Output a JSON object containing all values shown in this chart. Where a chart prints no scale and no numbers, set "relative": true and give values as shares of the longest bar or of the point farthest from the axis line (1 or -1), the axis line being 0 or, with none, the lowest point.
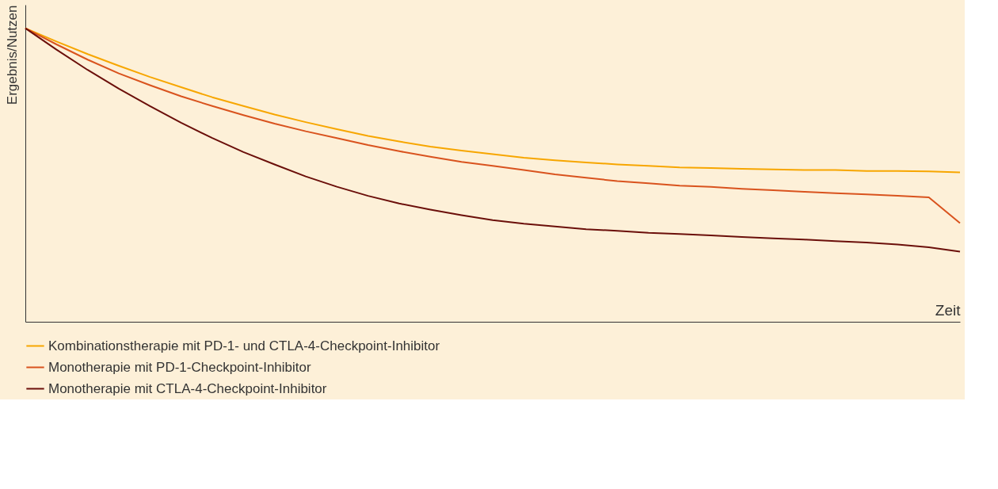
{
  "chart_data": {
    "type": "line",
    "relative": true,
    "xlabel": "Zeit",
    "ylabel": "Ergebnis/Nutzen",
    "legend": "bottom",
    "grid": false,
    "marker": "none",
    "line_style": "solid",
    "categories": [
      null,
      null,
      null,
      null,
      null,
      null,
      null,
      null,
      null,
      null,
      null,
      null,
      null,
      null,
      null,
      null,
      null,
      null,
      null,
      null,
      null,
      null,
      null,
      null,
      null,
      null,
      null,
      null,
      null,
      null,
      null
    ],
    "series": [
      {
        "name": "Kombinationstherapie mit PD-1- und CTLA-4-Checkpoint-Inhibitor",
        "color": "#f7a600",
        "values": [
          1.0,
          0.955,
          0.912,
          0.872,
          0.834,
          0.799,
          0.765,
          0.735,
          0.706,
          0.68,
          0.656,
          0.633,
          0.614,
          0.597,
          0.583,
          0.571,
          0.559,
          0.55,
          0.543,
          0.536,
          0.531,
          0.526,
          0.524,
          0.521,
          0.519,
          0.517,
          0.517,
          0.514,
          0.514,
          0.512,
          0.509
        ]
      },
      {
        "name": "Monotherapie mit PD-1-Checkpoint-Inhibitor",
        "color": "#d9531e",
        "values": [
          1.0,
          0.945,
          0.893,
          0.846,
          0.806,
          0.768,
          0.735,
          0.704,
          0.675,
          0.649,
          0.626,
          0.602,
          0.581,
          0.562,
          0.545,
          0.531,
          0.517,
          0.502,
          0.491,
          0.479,
          0.472,
          0.464,
          0.46,
          0.453,
          0.448,
          0.443,
          0.438,
          0.434,
          0.429,
          0.424,
          0.336
        ]
      },
      {
        "name": "Monotherapie mit CTLA-4-Checkpoint-Inhibitor",
        "color": "#6b0f0a",
        "values": [
          1.0,
          0.927,
          0.858,
          0.794,
          0.735,
          0.678,
          0.626,
          0.578,
          0.536,
          0.495,
          0.46,
          0.429,
          0.403,
          0.382,
          0.363,
          0.346,
          0.334,
          0.325,
          0.315,
          0.31,
          0.303,
          0.299,
          0.294,
          0.289,
          0.284,
          0.28,
          0.275,
          0.27,
          0.263,
          0.254,
          0.239
        ]
      }
    ]
  }
}
